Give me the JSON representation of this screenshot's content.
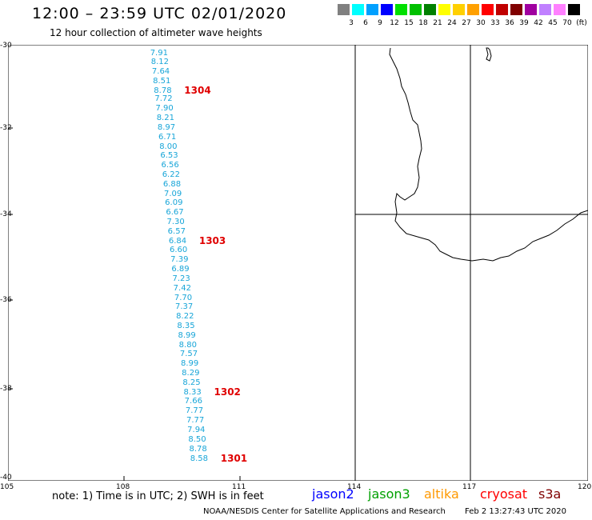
{
  "header": {
    "title": "12:00 – 23:59 UTC 02/01/2020",
    "subtitle": "12 hour collection of altimeter wave heights"
  },
  "legend": {
    "colors": [
      "#808080",
      "#00ffff",
      "#00a0ff",
      "#0000ff",
      "#00e000",
      "#00c000",
      "#008000",
      "#ffff00",
      "#ffd000",
      "#ffa000",
      "#ff0000",
      "#c00000",
      "#800000",
      "#a000a0",
      "#c080ff",
      "#ff80ff",
      "#000000"
    ],
    "labels": [
      "3",
      "6",
      "9",
      "12",
      "15",
      "18",
      "21",
      "24",
      "27",
      "30",
      "33",
      "36",
      "39",
      "42",
      "45",
      "70",
      "(ft)"
    ]
  },
  "axes": {
    "lat_labels": [
      "-30",
      "-32",
      "-34",
      "-36",
      "-38",
      "-40"
    ],
    "lon_labels": [
      "105",
      "108",
      "111",
      "114",
      "117",
      "120"
    ]
  },
  "observations": [
    {
      "v": "7.91",
      "lat": -30.13
    },
    {
      "v": "8.12",
      "lat": -30.33
    },
    {
      "v": "7.64",
      "lat": -30.55
    },
    {
      "v": "8.51",
      "lat": -30.78
    },
    {
      "v": "8.78",
      "lat": -31.0
    },
    {
      "v": "7.72",
      "lat": -31.2
    },
    {
      "v": "7.90",
      "lat": -31.42
    },
    {
      "v": "8.21",
      "lat": -31.64
    },
    {
      "v": "8.97",
      "lat": -31.86
    },
    {
      "v": "6.71",
      "lat": -32.08
    },
    {
      "v": "8.00",
      "lat": -32.3
    },
    {
      "v": "6.53",
      "lat": -32.52
    },
    {
      "v": "6.56",
      "lat": -32.74
    },
    {
      "v": "6.22",
      "lat": -32.96
    },
    {
      "v": "6.88",
      "lat": -33.18
    },
    {
      "v": "7.09",
      "lat": -33.4
    },
    {
      "v": "6.09",
      "lat": -33.62
    },
    {
      "v": "6.67",
      "lat": -33.84
    },
    {
      "v": "7.30",
      "lat": -34.06
    },
    {
      "v": "6.57",
      "lat": -34.28
    },
    {
      "v": "6.84",
      "lat": -34.5
    },
    {
      "v": "6.60",
      "lat": -34.72
    },
    {
      "v": "7.39",
      "lat": -34.94
    },
    {
      "v": "6.89",
      "lat": -35.16
    },
    {
      "v": "7.23",
      "lat": -35.38
    },
    {
      "v": "7.42",
      "lat": -35.6
    },
    {
      "v": "7.70",
      "lat": -35.82
    },
    {
      "v": "7.37",
      "lat": -36.04
    },
    {
      "v": "8.22",
      "lat": -36.26
    },
    {
      "v": "8.35",
      "lat": -36.48
    },
    {
      "v": "8.99",
      "lat": -36.7
    },
    {
      "v": "8.80",
      "lat": -36.92
    },
    {
      "v": "7.57",
      "lat": -37.14
    },
    {
      "v": "8.99",
      "lat": -37.36
    },
    {
      "v": "8.29",
      "lat": -37.58
    },
    {
      "v": "8.25",
      "lat": -37.8
    },
    {
      "v": "8.33",
      "lat": -38.02
    },
    {
      "v": "7.66",
      "lat": -38.24
    },
    {
      "v": "7.77",
      "lat": -38.46
    },
    {
      "v": "7.77",
      "lat": -38.68
    },
    {
      "v": "7.94",
      "lat": -38.9
    },
    {
      "v": "8.50",
      "lat": -39.12
    },
    {
      "v": "8.78",
      "lat": -39.34
    },
    {
      "v": "8.58",
      "lat": -39.57
    }
  ],
  "pass_labels": [
    {
      "text": "1304",
      "lat": -31.0
    },
    {
      "text": "1303",
      "lat": -34.5
    },
    {
      "text": "1302",
      "lat": -38.02
    },
    {
      "text": "1301",
      "lat": -39.57
    }
  ],
  "footer": {
    "note": "note: 1) Time is in UTC; 2) SWH is in feet",
    "credit": "NOAA/NESDIS Center for Satellite Applications and Research",
    "timestamp": "Feb  2 13:27:43 UTC 2020",
    "satellites": [
      {
        "name": "jason2",
        "color": "#0000ff"
      },
      {
        "name": "jason3",
        "color": "#00a000"
      },
      {
        "name": "altika",
        "color": "#ff9900"
      },
      {
        "name": "cryosat",
        "color": "#ff0000"
      },
      {
        "name": "s3a",
        "color": "#800000"
      }
    ]
  }
}
